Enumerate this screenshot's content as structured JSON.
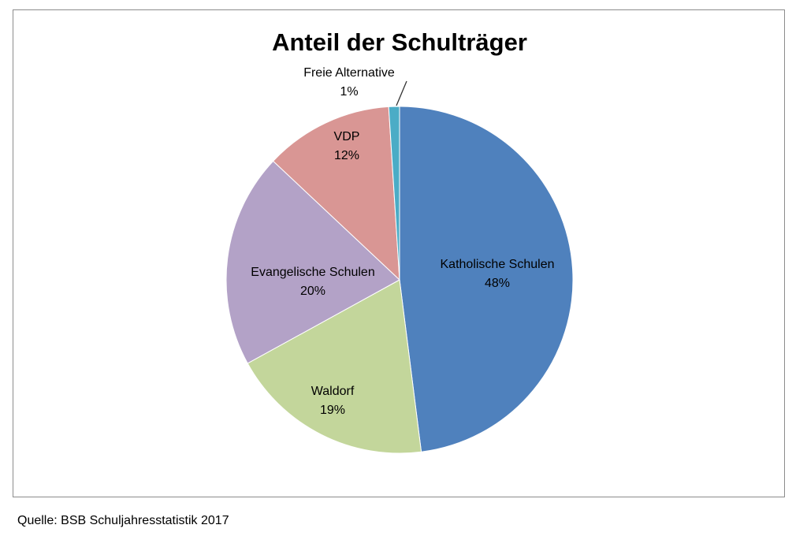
{
  "chart_data": {
    "type": "pie",
    "title": "Anteil der Schulträger",
    "start": "top, clockwise",
    "slices": [
      {
        "label": "Katholische Schulen",
        "value": 48,
        "pct_label": "48%",
        "color": "#4f81bd"
      },
      {
        "label": "Waldorf",
        "value": 19,
        "pct_label": "19%",
        "color": "#c3d69b"
      },
      {
        "label": "Evangelische Schulen",
        "value": 20,
        "pct_label": "20%",
        "color": "#b3a2c7"
      },
      {
        "label": "VDP",
        "value": 12,
        "pct_label": "12%",
        "color": "#d99694"
      },
      {
        "label": "Freie Alternative",
        "value": 1,
        "pct_label": "1%",
        "color": "#4bacc6"
      }
    ],
    "legend": "none"
  },
  "source": "Quelle: BSB Schuljahresstatistik 2017"
}
